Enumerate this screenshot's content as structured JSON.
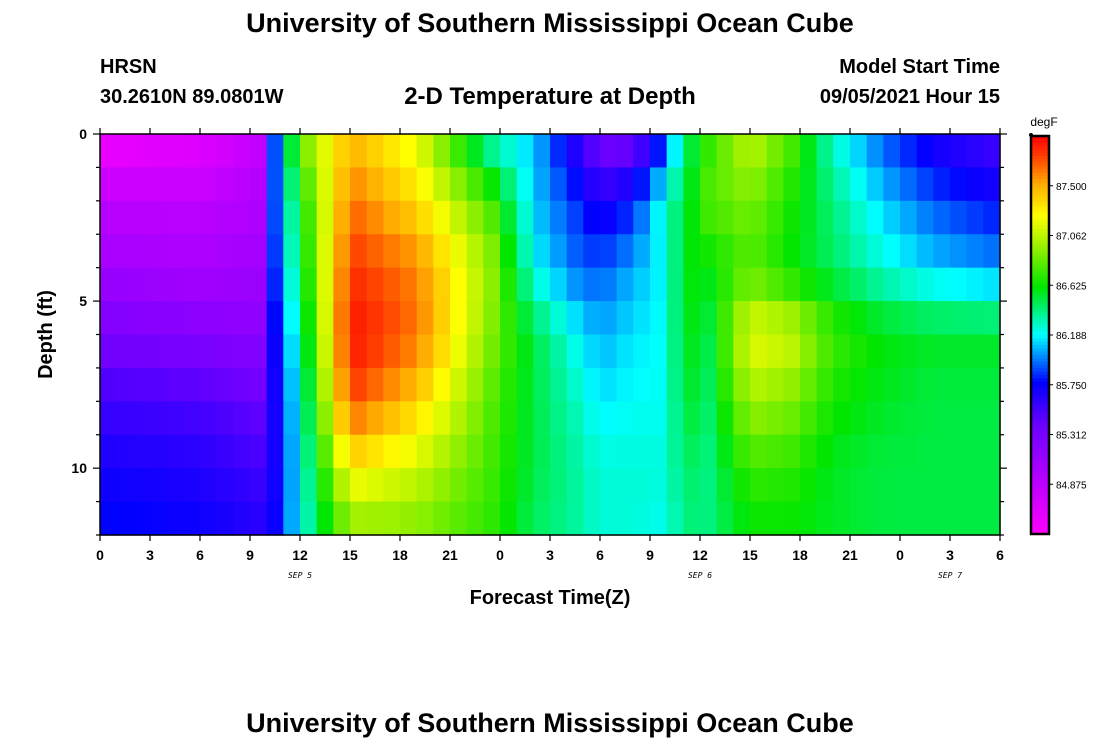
{
  "page": {
    "title": "University of Southern Mississippi Ocean Cube",
    "footer_title": "University of Southern Mississippi Ocean Cube",
    "station": "HRSN",
    "coords": "30.2610N  89.0801W",
    "subtitle": "2-D Temperature at Depth",
    "model_start_label": "Model Start Time",
    "model_start_value": "09/05/2021 Hour 15"
  },
  "chart_data": {
    "type": "heatmap",
    "title": "2-D Temperature at Depth",
    "xlabel": "Forecast Time(Z)",
    "ylabel": "Depth (ft)",
    "x_tick_labels": [
      "0",
      "3",
      "6",
      "9",
      "12",
      "15",
      "18",
      "21",
      "0",
      "3",
      "6",
      "9",
      "12",
      "15",
      "18",
      "21",
      "0",
      "3",
      "6"
    ],
    "x_range_hours": [
      0,
      54
    ],
    "date_labels": [
      {
        "hour": 12,
        "label": "SEP 5"
      },
      {
        "hour": 36,
        "label": "SEP 6"
      },
      {
        "hour": 51,
        "label": "SEP 7"
      }
    ],
    "y_range_ft": [
      0,
      12
    ],
    "y_tick_labels": [
      {
        "value": 0,
        "label": "0"
      },
      {
        "value": 5,
        "label": "5"
      },
      {
        "value": 10,
        "label": "10"
      }
    ],
    "y_inverted": true,
    "colorbar": {
      "unit": "degF",
      "min": 84.4375,
      "max": 87.9375,
      "tick_labels": [
        {
          "value": 87.5,
          "label": "87.500"
        },
        {
          "value": 87.0625,
          "label": "87.062"
        },
        {
          "value": 86.625,
          "label": "86.625"
        },
        {
          "value": 86.1875,
          "label": "86.188"
        },
        {
          "value": 85.75,
          "label": "85.750"
        },
        {
          "value": 85.3125,
          "label": "85.312"
        },
        {
          "value": 84.875,
          "label": "84.875"
        }
      ]
    },
    "grid": {
      "depth_step_ft": 1,
      "time_step_hours": 1,
      "control_times_hours": [
        0,
        6,
        9.5,
        10.5,
        12,
        15,
        19,
        23.5,
        26,
        28.5,
        30,
        32,
        34,
        35,
        36.5,
        39,
        41.5,
        44,
        47,
        50,
        54
      ],
      "control_values_by_depth": [
        {
          "depth_ft": 0,
          "values": [
            84.5,
            84.6,
            84.8,
            85.9,
            86.9,
            87.45,
            87.15,
            86.25,
            86.1,
            85.6,
            85.3,
            85.3,
            85.8,
            86.4,
            86.7,
            87.1,
            86.8,
            86.25,
            85.9,
            85.65,
            85.5
          ]
        },
        {
          "depth_ft": 2,
          "values": [
            84.85,
            84.85,
            84.95,
            85.9,
            86.6,
            87.65,
            87.35,
            86.75,
            86.1,
            85.85,
            85.65,
            85.8,
            86.3,
            86.5,
            86.8,
            86.9,
            86.65,
            86.4,
            86.1,
            85.9,
            85.75
          ]
        },
        {
          "depth_ft": 4,
          "values": [
            85.05,
            85.0,
            85.05,
            85.85,
            86.5,
            87.8,
            87.6,
            86.95,
            86.2,
            85.95,
            85.9,
            86.05,
            86.2,
            86.6,
            86.6,
            86.8,
            86.6,
            86.45,
            86.25,
            86.1,
            86.0
          ]
        },
        {
          "depth_ft": 6,
          "values": [
            85.3,
            85.25,
            85.2,
            85.75,
            86.35,
            87.9,
            87.65,
            86.9,
            86.5,
            86.2,
            86.05,
            86.15,
            86.2,
            86.6,
            86.5,
            87.2,
            87.1,
            86.75,
            86.6,
            86.55,
            86.55
          ]
        },
        {
          "depth_ft": 8,
          "values": [
            85.55,
            85.5,
            85.4,
            85.7,
            86.25,
            87.75,
            87.4,
            86.8,
            86.5,
            86.3,
            86.15,
            86.2,
            86.2,
            86.55,
            86.45,
            87.0,
            86.9,
            86.65,
            86.55,
            86.5,
            86.5
          ]
        },
        {
          "depth_ft": 10,
          "values": [
            85.7,
            85.65,
            85.55,
            85.7,
            86.2,
            87.3,
            87.1,
            86.75,
            86.5,
            86.35,
            86.25,
            86.25,
            86.25,
            86.45,
            86.4,
            86.75,
            86.7,
            86.55,
            86.5,
            86.5,
            86.5
          ]
        },
        {
          "depth_ft": 12,
          "values": [
            85.8,
            85.75,
            85.65,
            85.75,
            86.2,
            86.9,
            86.9,
            86.7,
            86.45,
            86.35,
            86.25,
            86.25,
            86.2,
            86.4,
            86.4,
            86.6,
            86.6,
            86.55,
            86.5,
            86.5,
            86.5
          ]
        }
      ]
    }
  }
}
